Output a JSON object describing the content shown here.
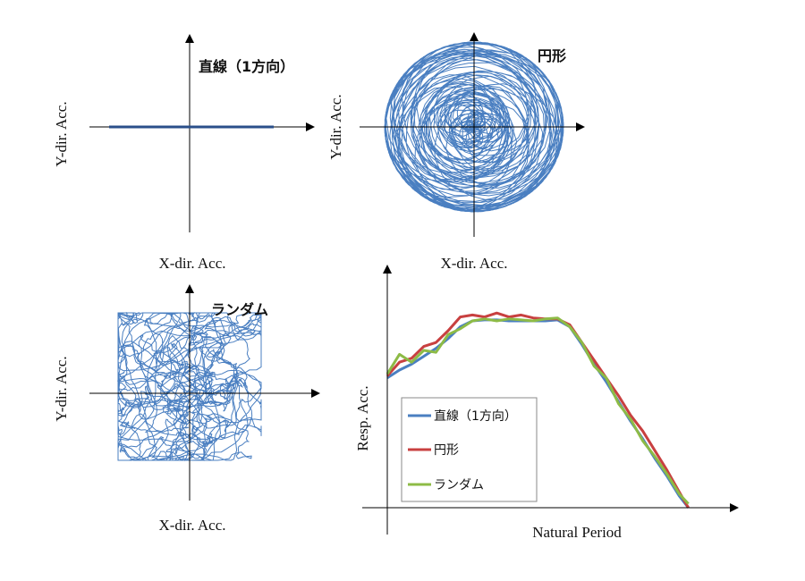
{
  "panels": [
    {
      "title": "直線（1方向）",
      "xlabel": "X-dir. Acc.",
      "ylabel": "Y-dir. Acc.",
      "mode": "linear"
    },
    {
      "title": "円形",
      "xlabel": "X-dir. Acc.",
      "ylabel": "Y-dir. Acc.",
      "mode": "circular"
    },
    {
      "title": "ランダム",
      "xlabel": "X-dir. Acc.",
      "ylabel": "Y-dir. Acc.",
      "mode": "random"
    }
  ],
  "chart_data": {
    "type": "line",
    "title": "",
    "xlabel": "Natural Period",
    "ylabel": "Resp. Acc.",
    "xlim": [
      0,
      1.15
    ],
    "ylim": [
      0,
      1.25
    ],
    "grid": false,
    "legend": "bottom-left",
    "x": [
      0,
      0.04,
      0.08,
      0.12,
      0.16,
      0.2,
      0.24,
      0.28,
      0.32,
      0.36,
      0.4,
      0.44,
      0.48,
      0.52,
      0.56,
      0.6,
      0.64,
      0.68,
      0.72,
      0.76,
      0.8,
      0.84,
      0.88,
      0.92,
      0.96,
      0.99
    ],
    "series": [
      {
        "name": "直線（1方向）",
        "color": "#4a7fc1",
        "values": [
          0.66,
          0.7,
          0.73,
          0.77,
          0.81,
          0.86,
          0.92,
          0.95,
          0.955,
          0.955,
          0.95,
          0.95,
          0.95,
          0.95,
          0.955,
          0.92,
          0.83,
          0.73,
          0.64,
          0.54,
          0.44,
          0.35,
          0.25,
          0.16,
          0.06,
          0.0
        ]
      },
      {
        "name": "円形",
        "color": "#c84040",
        "values": [
          0.67,
          0.74,
          0.76,
          0.82,
          0.84,
          0.9,
          0.97,
          0.98,
          0.97,
          0.99,
          0.97,
          0.98,
          0.965,
          0.96,
          0.96,
          0.93,
          0.84,
          0.75,
          0.66,
          0.57,
          0.47,
          0.39,
          0.29,
          0.19,
          0.08,
          0.0
        ]
      },
      {
        "name": "ランダム",
        "color": "#8dbb46",
        "values": [
          0.68,
          0.78,
          0.74,
          0.8,
          0.79,
          0.88,
          0.91,
          0.95,
          0.96,
          0.95,
          0.96,
          0.955,
          0.95,
          0.96,
          0.965,
          0.92,
          0.84,
          0.72,
          0.66,
          0.53,
          0.45,
          0.34,
          0.26,
          0.17,
          0.07,
          0.02
        ]
      }
    ]
  }
}
